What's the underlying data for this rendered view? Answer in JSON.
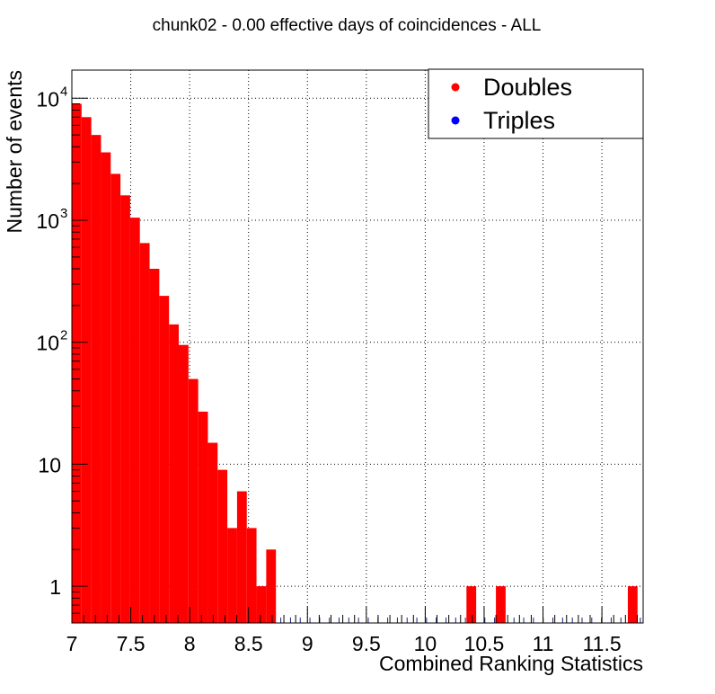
{
  "chart_data": {
    "type": "bar",
    "title": "chunk02 - 0.00 effective days of coincidences - ALL",
    "xlabel": "Combined Ranking Statistics",
    "ylabel": "Number of events",
    "xlim": [
      7.0,
      11.85
    ],
    "ylim": [
      0.5,
      17000
    ],
    "y_scale": "log",
    "grid": true,
    "legend_position": "top-right",
    "bin_width": 0.0825,
    "x_ticks": [
      {
        "value": 7,
        "label": "7"
      },
      {
        "value": 7.5,
        "label": "7.5"
      },
      {
        "value": 8,
        "label": "8"
      },
      {
        "value": 8.5,
        "label": "8.5"
      },
      {
        "value": 9,
        "label": "9"
      },
      {
        "value": 9.5,
        "label": "9.5"
      },
      {
        "value": 10,
        "label": "10"
      },
      {
        "value": 10.5,
        "label": "10.5"
      },
      {
        "value": 11,
        "label": "11"
      },
      {
        "value": 11.5,
        "label": "11.5"
      }
    ],
    "y_ticks": [
      {
        "value": 1,
        "label": "1"
      },
      {
        "value": 10,
        "label": "10"
      },
      {
        "value": 100,
        "label": "10",
        "sup": "2"
      },
      {
        "value": 1000,
        "label": "10",
        "sup": "3"
      },
      {
        "value": 10000,
        "label": "10",
        "sup": "4"
      }
    ],
    "series": [
      {
        "name": "Doubles",
        "color": "#ff0000",
        "bins": [
          {
            "x": 7.0,
            "y": 9000
          },
          {
            "x": 7.0825,
            "y": 7000
          },
          {
            "x": 7.165,
            "y": 5000
          },
          {
            "x": 7.2475,
            "y": 3600
          },
          {
            "x": 7.33,
            "y": 2400
          },
          {
            "x": 7.4125,
            "y": 1600
          },
          {
            "x": 7.495,
            "y": 1050
          },
          {
            "x": 7.5775,
            "y": 650
          },
          {
            "x": 7.66,
            "y": 400
          },
          {
            "x": 7.7425,
            "y": 240
          },
          {
            "x": 7.825,
            "y": 140
          },
          {
            "x": 7.9075,
            "y": 95
          },
          {
            "x": 7.99,
            "y": 50
          },
          {
            "x": 8.0725,
            "y": 27
          },
          {
            "x": 8.155,
            "y": 15
          },
          {
            "x": 8.2375,
            "y": 9
          },
          {
            "x": 8.32,
            "y": 3
          },
          {
            "x": 8.4025,
            "y": 6
          },
          {
            "x": 8.485,
            "y": 3
          },
          {
            "x": 8.5675,
            "y": 1
          },
          {
            "x": 8.65,
            "y": 2
          },
          {
            "x": 10.35,
            "y": 1
          },
          {
            "x": 10.6,
            "y": 1
          },
          {
            "x": 11.72,
            "y": 1
          }
        ]
      },
      {
        "name": "Triples",
        "color": "#0000ff",
        "bins": []
      }
    ]
  }
}
